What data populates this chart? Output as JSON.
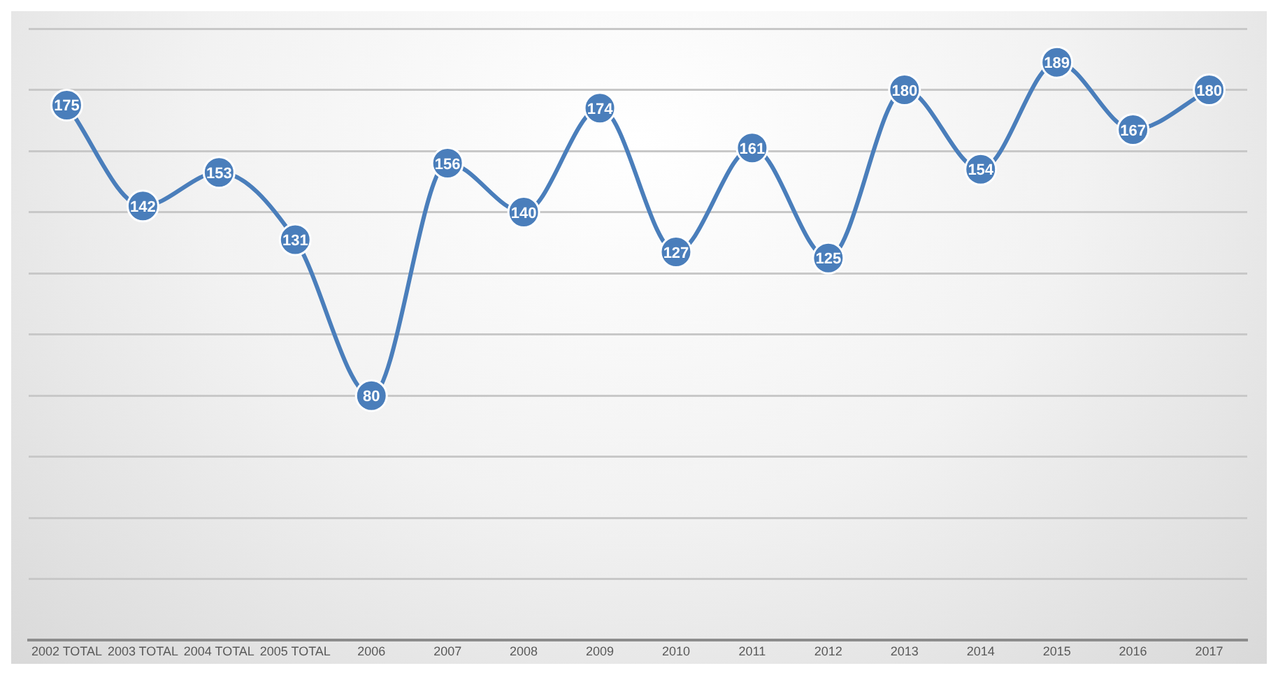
{
  "chart_data": {
    "type": "line",
    "categories": [
      "2002 TOTAL",
      "2003 TOTAL",
      "2004 TOTAL",
      "2005 TOTAL",
      "2006",
      "2007",
      "2008",
      "2009",
      "2010",
      "2011",
      "2012",
      "2013",
      "2014",
      "2015",
      "2016",
      "2017"
    ],
    "series": [
      {
        "color": "#4a7ebb",
        "values": [
          175,
          142,
          153,
          131,
          80,
          156,
          140,
          174,
          127,
          161,
          125,
          180,
          154,
          189,
          167,
          180
        ]
      }
    ],
    "ylim": [
      0,
      200
    ],
    "yticks": [
      {
        "value": 0,
        "label": null
      },
      {
        "value": 20,
        "label": null
      },
      {
        "value": 40,
        "label": null
      },
      {
        "value": 60,
        "label": null
      },
      {
        "value": 80,
        "label": null
      },
      {
        "value": 100,
        "label": null
      },
      {
        "value": 120,
        "label": null
      },
      {
        "value": 140,
        "label": null
      },
      {
        "value": 160,
        "label": null
      },
      {
        "value": 180,
        "label": null
      },
      {
        "value": 200,
        "label": null
      }
    ],
    "tick_labels": "x",
    "grid": "y",
    "legend": false,
    "marker": "circle",
    "line_style": "solid",
    "data_labels": true
  }
}
